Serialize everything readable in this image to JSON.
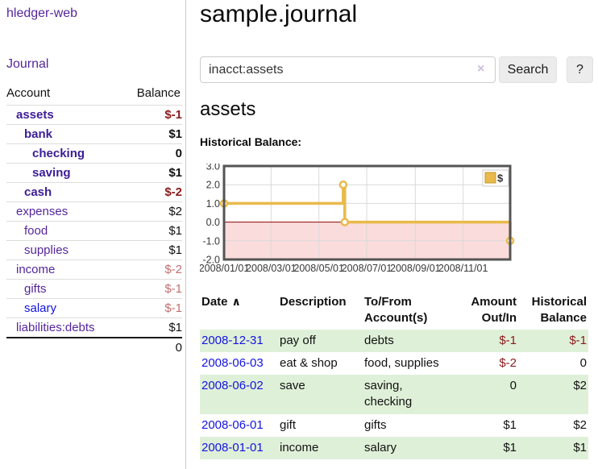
{
  "app": {
    "brand": "hledger-web",
    "nav_journal": "Journal"
  },
  "sidebar": {
    "headers": {
      "account": "Account",
      "balance": "Balance"
    },
    "accounts": [
      {
        "name": "assets",
        "depth": 0,
        "style": "current",
        "balance": "$-1",
        "balance_style": "neg-strong"
      },
      {
        "name": "bank",
        "depth": 1,
        "style": "current",
        "balance": "$1",
        "balance_style": "strong"
      },
      {
        "name": "checking",
        "depth": 2,
        "style": "current",
        "balance": "0",
        "balance_style": "strong"
      },
      {
        "name": "saving",
        "depth": 2,
        "style": "current",
        "balance": "$1",
        "balance_style": "strong"
      },
      {
        "name": "cash",
        "depth": 1,
        "style": "current",
        "balance": "$-2",
        "balance_style": "neg-strong"
      },
      {
        "name": "expenses",
        "depth": 0,
        "style": "link",
        "balance": "$2",
        "balance_style": "plain"
      },
      {
        "name": "food",
        "depth": 1,
        "style": "link",
        "balance": "$1",
        "balance_style": "plain"
      },
      {
        "name": "supplies",
        "depth": 1,
        "style": "link",
        "balance": "$1",
        "balance_style": "plain"
      },
      {
        "name": "income",
        "depth": 0,
        "style": "link",
        "balance": "$-2",
        "balance_style": "neg-soft"
      },
      {
        "name": "gifts",
        "depth": 1,
        "style": "link",
        "balance": "$-1",
        "balance_style": "neg-soft"
      },
      {
        "name": "salary",
        "depth": 1,
        "style": "link-blue",
        "balance": "$-1",
        "balance_style": "neg-soft"
      },
      {
        "name": "liabilities:debts",
        "depth": 0,
        "style": "link",
        "balance": "$1",
        "balance_style": "plain"
      }
    ],
    "total": "0"
  },
  "header": {
    "title": "sample.journal"
  },
  "search": {
    "value": "inacct:assets",
    "clear_icon": "×",
    "button_label": "Search",
    "help_label": "?"
  },
  "account_page": {
    "title": "assets",
    "chart_label": "Historical Balance:"
  },
  "chart_data": {
    "type": "line",
    "step": true,
    "title": "Historical Balance",
    "legend": "$",
    "ylim": [
      -2,
      3
    ],
    "y_ticks": [
      3.0,
      2.0,
      1.0,
      0.0,
      -1.0,
      -2.0
    ],
    "x_domain": [
      "2008-01-01",
      "2008-12-31"
    ],
    "x_ticks": [
      {
        "label": "2008/01/01",
        "date": "2008-01-01"
      },
      {
        "label": "2008/03/01",
        "date": "2008-03-01"
      },
      {
        "label": "2008/05/01",
        "date": "2008-05-01"
      },
      {
        "label": "2008/07/01",
        "date": "2008-07-01"
      },
      {
        "label": "2008/09/01",
        "date": "2008-09-01"
      },
      {
        "label": "2008/11/01",
        "date": "2008-11-01"
      }
    ],
    "series": [
      {
        "name": "$",
        "points": [
          {
            "x": "2008-01-01",
            "y": 1
          },
          {
            "x": "2008-06-01",
            "y": 2
          },
          {
            "x": "2008-06-03",
            "y": 0
          },
          {
            "x": "2008-12-31",
            "y": -1
          }
        ]
      }
    ],
    "colors": {
      "line": "#e9ba4b",
      "line_edge": "#c49a28",
      "negative_region": "#fbdcdc",
      "zero_line": "#8b0000",
      "frame": "#545454",
      "grid": "#d9d9d9",
      "legend_border": "#cccccc"
    }
  },
  "register": {
    "headers": {
      "date": "Date",
      "description": "Description",
      "accounts": "To/From Account(s)",
      "amount": "Amount Out/In",
      "balance": "Historical Balance"
    },
    "sort_icon": "∧",
    "rows": [
      {
        "date": "2008-12-31",
        "description": "pay off",
        "accounts": "debts",
        "amount": "$-1",
        "amount_neg": true,
        "balance": "$-1",
        "balance_neg": true
      },
      {
        "date": "2008-06-03",
        "description": "eat & shop",
        "accounts": "food, supplies",
        "amount": "$-2",
        "amount_neg": true,
        "balance": "0",
        "balance_neg": false
      },
      {
        "date": "2008-06-02",
        "description": "save",
        "accounts": "saving, checking",
        "amount": "0",
        "amount_neg": false,
        "balance": "$2",
        "balance_neg": false
      },
      {
        "date": "2008-06-01",
        "description": "gift",
        "accounts": "gifts",
        "amount": "$1",
        "amount_neg": false,
        "balance": "$2",
        "balance_neg": false
      },
      {
        "date": "2008-01-01",
        "description": "income",
        "accounts": "salary",
        "amount": "$1",
        "amount_neg": false,
        "balance": "$1",
        "balance_neg": false
      }
    ]
  }
}
